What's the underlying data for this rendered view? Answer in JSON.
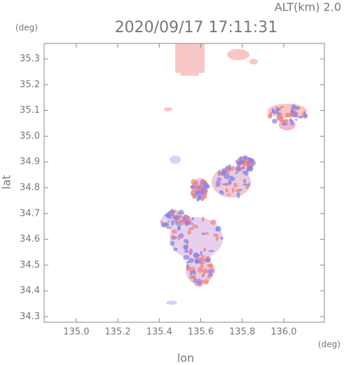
{
  "header": {
    "altitude_label": "ALT(km) 2.0",
    "timestamp": "2020/09/17 17:11:31"
  },
  "axes": {
    "x_label": "lon",
    "y_label": "lat",
    "x_unit": "(deg)",
    "y_unit": "(deg)",
    "xlim": [
      134.845,
      136.196
    ],
    "ylim": [
      34.278,
      35.36
    ],
    "xticks": [
      {
        "value": 135,
        "label": "135.0"
      },
      {
        "value": 135.2,
        "label": "135.2"
      },
      {
        "value": 135.4,
        "label": "135.4"
      },
      {
        "value": 135.6,
        "label": "135.6"
      },
      {
        "value": 135.8,
        "label": "135.8"
      },
      {
        "value": 136,
        "label": "136.0"
      }
    ],
    "yticks": [
      {
        "value": 34.3,
        "label": "34.3"
      },
      34.4,
      34.5,
      34.6,
      34.7,
      34.8,
      34.9,
      {
        "value": 35,
        "label": "35.0"
      },
      35.1,
      35.2,
      35.3
    ]
  }
}
